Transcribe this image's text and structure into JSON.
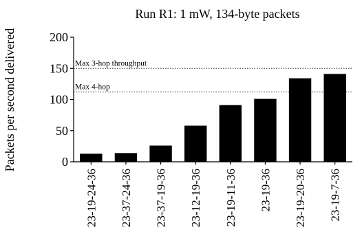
{
  "chart_data": {
    "type": "bar",
    "title": "Run R1: 1 mW, 134-byte packets",
    "xlabel": "",
    "ylabel": "Packets per second delivered",
    "ylim": [
      0,
      200
    ],
    "yticks": [
      0,
      50,
      100,
      150,
      200
    ],
    "categories": [
      "23-19-24-36",
      "23-37-24-36",
      "23-37-19-36",
      "23-12-19-36",
      "23-19-11-36",
      "23-19-36",
      "23-19-20-36",
      "23-19-7-36"
    ],
    "values": [
      13,
      14,
      26,
      58,
      91,
      101,
      134,
      141
    ],
    "reference_lines": [
      {
        "label": "Max 3-hop throughput",
        "value": 150
      },
      {
        "label": "Max 4-hop",
        "value": 112
      }
    ],
    "grid": false,
    "bar_color": "#000000"
  }
}
